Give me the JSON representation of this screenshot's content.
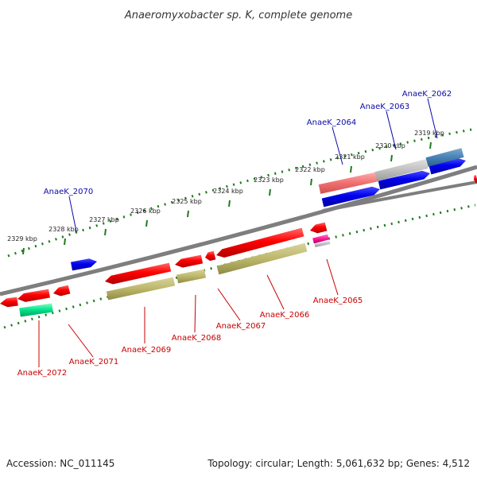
{
  "title": "Anaeromyxobacter sp. K, complete genome",
  "footer": {
    "accession": "Accession: NC_011145",
    "topology": "Topology: circular; Length: 5,061,632 bp; Genes: 4,512"
  },
  "colors": {
    "forward_label": "#0a0aa8",
    "reverse_label": "#c80000",
    "backbone": "#808080",
    "tick": "#1e7a1e"
  },
  "ticks": [
    {
      "label": "2329 kbp"
    },
    {
      "label": "2328 kbp"
    },
    {
      "label": "2327 kbp"
    },
    {
      "label": "2326 kbp"
    },
    {
      "label": "2325 kbp"
    },
    {
      "label": "2324 kbp"
    },
    {
      "label": "2323 kbp"
    },
    {
      "label": "2322 kbp"
    },
    {
      "label": "2321 kbp"
    },
    {
      "label": "2320 kbp"
    },
    {
      "label": "2319 kbp"
    }
  ],
  "forward_labels": [
    {
      "label": "AnaeK_2070"
    },
    {
      "label": "AnaeK_2064"
    },
    {
      "label": "AnaeK_2063"
    },
    {
      "label": "AnaeK_2062"
    }
  ],
  "reverse_labels": [
    {
      "label": "AnaeK_2072"
    },
    {
      "label": "AnaeK_2071"
    },
    {
      "label": "AnaeK_2069"
    },
    {
      "label": "AnaeK_2068"
    },
    {
      "label": "AnaeK_2067"
    },
    {
      "label": "AnaeK_2066"
    },
    {
      "label": "AnaeK_2065"
    }
  ]
}
